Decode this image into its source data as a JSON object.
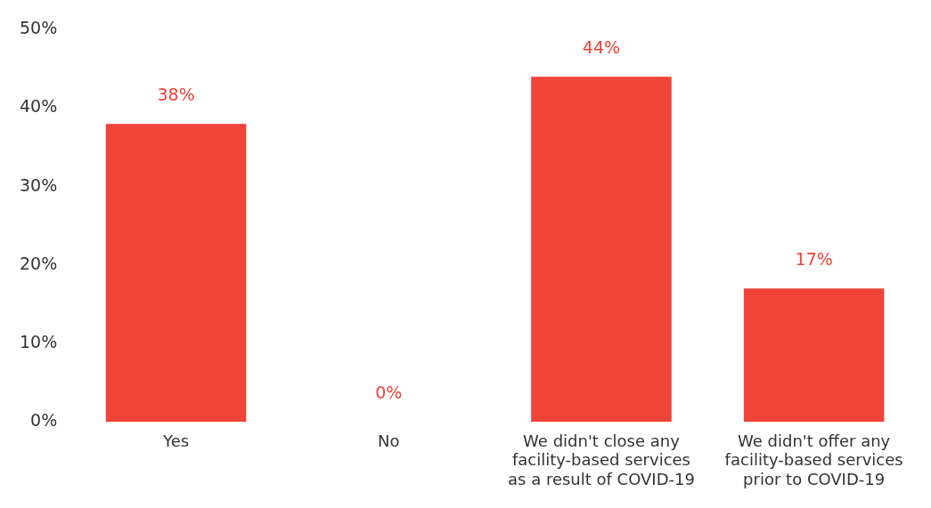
{
  "chart_data": {
    "type": "bar",
    "categories": [
      "Yes",
      "No",
      "We didn't close any facility-based services as a result of COVID-19",
      "We didn't offer any facility-based services prior to COVID-19"
    ],
    "values": [
      38,
      0,
      44,
      17
    ],
    "color": "#f04438",
    "value_labels": [
      "38%",
      "0%",
      "44%",
      "17%"
    ],
    "ylim": [
      0,
      50
    ],
    "yticks": [
      {
        "value": 0,
        "label": "0%"
      },
      {
        "value": 10,
        "label": "10%"
      },
      {
        "value": 20,
        "label": "20%"
      },
      {
        "value": 30,
        "label": "30%"
      },
      {
        "value": 40,
        "label": "40%"
      },
      {
        "value": 50,
        "label": "50%"
      }
    ],
    "grid": false,
    "legend": false
  }
}
